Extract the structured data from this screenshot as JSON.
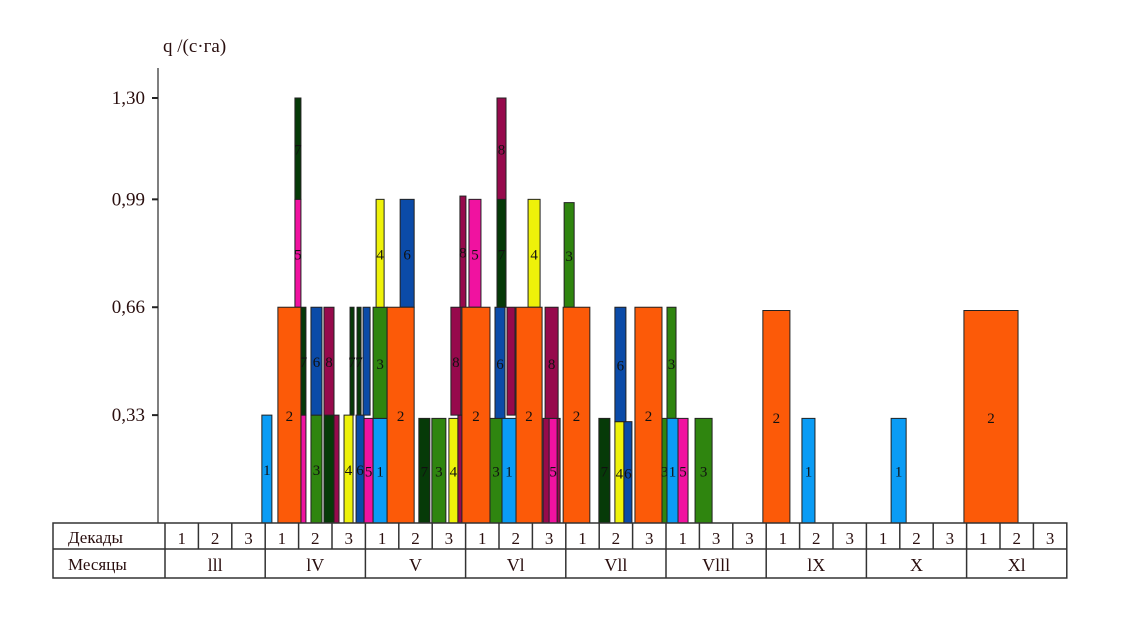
{
  "chart_data": {
    "type": "bar",
    "title": "",
    "ylabel": "q /(с·га)",
    "ylim": [
      0,
      1.3
    ],
    "yticks": [
      "0,33",
      "0,66",
      "0,99",
      "1,30"
    ],
    "ytick_values": [
      0.33,
      0.66,
      0.99,
      1.3
    ],
    "x_units": "decades from 1st decade of March",
    "row_labels": {
      "decades": "Декады",
      "months": "Месяцы"
    },
    "months": [
      "lll",
      "lV",
      "V",
      "Vl",
      "Vll",
      "Vlll",
      "lX",
      "X",
      "Xl"
    ],
    "decade_labels": [
      "1",
      "2",
      "3",
      "1",
      "2",
      "3",
      "1",
      "2",
      "3",
      "1",
      "2",
      "3",
      "1",
      "2",
      "3",
      "1",
      "3",
      "3",
      "1",
      "2",
      "3",
      "1",
      "2",
      "3",
      "1",
      "2",
      "3"
    ],
    "crop_colors": {
      "1": "#0a9cf5",
      "2": "#fc5a08",
      "3": "#2f850f",
      "4": "#eef20a",
      "5": "#f012a0",
      "6": "#0b4ba8",
      "7": "#063a08",
      "8": "#960a4c"
    },
    "bars_fields": [
      "crop",
      "x_start_decade",
      "x_end_decade",
      "q_from",
      "q_to",
      "labeled"
    ],
    "bars": [
      [
        1,
        2.9,
        3.2,
        0,
        0.33,
        1
      ],
      [
        5,
        3.89,
        4.07,
        0.66,
        0.99,
        1
      ],
      [
        7,
        3.89,
        4.07,
        0.99,
        1.3,
        1
      ],
      [
        5,
        4.07,
        4.22,
        0,
        0.33,
        0
      ],
      [
        7,
        4.07,
        4.22,
        0.33,
        0.66,
        1
      ],
      [
        2,
        3.38,
        4.07,
        0,
        0.66,
        1
      ],
      [
        3,
        4.37,
        4.7,
        0,
        0.33,
        1
      ],
      [
        6,
        4.37,
        4.7,
        0.33,
        0.66,
        1
      ],
      [
        7,
        4.76,
        5.06,
        0,
        0.33,
        0
      ],
      [
        8,
        5.06,
        5.21,
        0,
        0.33,
        0
      ],
      [
        8,
        4.76,
        5.06,
        0.33,
        0.66,
        1
      ],
      [
        7,
        5.54,
        5.66,
        0.33,
        0.66,
        1
      ],
      [
        7,
        5.75,
        5.87,
        0.33,
        0.66,
        1
      ],
      [
        4,
        5.36,
        5.63,
        0,
        0.33,
        1
      ],
      [
        6,
        5.72,
        5.96,
        0,
        0.33,
        1
      ],
      [
        6,
        5.93,
        6.14,
        0.33,
        0.66,
        0
      ],
      [
        5,
        5.96,
        6.23,
        0,
        0.32,
        1
      ],
      [
        1,
        6.23,
        6.65,
        0,
        0.32,
        1
      ],
      [
        3,
        6.23,
        6.65,
        0.32,
        0.66,
        1
      ],
      [
        4,
        6.32,
        6.56,
        0.66,
        0.99,
        1
      ],
      [
        6,
        7.04,
        7.46,
        0.66,
        0.99,
        1
      ],
      [
        2,
        6.65,
        7.46,
        0,
        0.66,
        1
      ],
      [
        7,
        7.6,
        7.93,
        0,
        0.32,
        1
      ],
      [
        3,
        7.99,
        8.41,
        0,
        0.32,
        1
      ],
      [
        4,
        8.5,
        8.77,
        0,
        0.32,
        1
      ],
      [
        8,
        8.77,
        8.92,
        0,
        0.33,
        0
      ],
      [
        8,
        8.56,
        8.86,
        0.33,
        0.66,
        1
      ],
      [
        8,
        8.83,
        9.01,
        0.66,
        1.0,
        1
      ],
      [
        5,
        9.1,
        9.46,
        0.66,
        0.99,
        1
      ],
      [
        2,
        8.89,
        9.73,
        0,
        0.66,
        1
      ],
      [
        3,
        9.73,
        10.09,
        0,
        0.32,
        1
      ],
      [
        6,
        9.88,
        10.18,
        0.32,
        0.66,
        1
      ],
      [
        7,
        9.94,
        10.21,
        0.66,
        0.99,
        1
      ],
      [
        8,
        9.94,
        10.21,
        0.99,
        1.3,
        1
      ],
      [
        1,
        10.09,
        10.51,
        0,
        0.32,
        1
      ],
      [
        8,
        10.24,
        10.48,
        0.33,
        0.66,
        0
      ],
      [
        4,
        10.87,
        11.23,
        0.66,
        0.99,
        1
      ],
      [
        2,
        10.51,
        11.29,
        0,
        0.66,
        1
      ],
      [
        8,
        11.32,
        11.83,
        0,
        0.32,
        0
      ],
      [
        5,
        11.5,
        11.74,
        0,
        0.32,
        1
      ],
      [
        8,
        11.38,
        11.77,
        0.32,
        0.66,
        1
      ],
      [
        3,
        11.95,
        12.25,
        0.66,
        0.98,
        1
      ],
      [
        2,
        11.92,
        12.72,
        0,
        0.66,
        1
      ],
      [
        7,
        12.99,
        13.32,
        0,
        0.32,
        1
      ],
      [
        4,
        13.47,
        13.74,
        0,
        0.31,
        1
      ],
      [
        6,
        13.74,
        13.98,
        0,
        0.31,
        1
      ],
      [
        6,
        13.47,
        13.8,
        0.31,
        0.66,
        1
      ],
      [
        2,
        14.07,
        14.88,
        0,
        0.66,
        1
      ],
      [
        3,
        14.88,
        15.03,
        0,
        0.32,
        1
      ],
      [
        3,
        15.03,
        15.3,
        0.32,
        0.66,
        1
      ],
      [
        1,
        15.03,
        15.36,
        0,
        0.32,
        1
      ],
      [
        5,
        15.36,
        15.66,
        0,
        0.32,
        1
      ],
      [
        3,
        15.87,
        16.38,
        0,
        0.32,
        1
      ],
      [
        2,
        17.9,
        18.71,
        0,
        0.65,
        1
      ],
      [
        1,
        19.07,
        19.46,
        0,
        0.32,
        1
      ],
      [
        1,
        21.74,
        22.19,
        0,
        0.32,
        1
      ],
      [
        2,
        23.92,
        25.54,
        0,
        0.65,
        1
      ]
    ]
  }
}
